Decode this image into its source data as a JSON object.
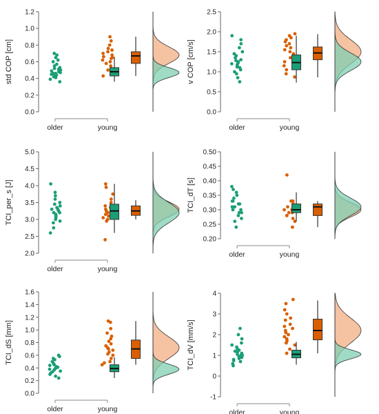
{
  "colors": {
    "older": "#1b9e77",
    "young": "#d95f02",
    "older_fill": "#7fcfb2",
    "young_fill": "#f2ad83"
  },
  "chart_data": [
    {
      "type": "raincloud",
      "ylabel": "std COP [cm]",
      "ylim": [
        0.0,
        1.2
      ],
      "yticks": [
        "0.0",
        "0.2",
        "0.4",
        "0.6",
        "0.8",
        "1.0",
        "1.2"
      ],
      "categories": [
        "older",
        "young"
      ],
      "older_points": [
        0.36,
        0.39,
        0.41,
        0.42,
        0.43,
        0.44,
        0.45,
        0.46,
        0.46,
        0.47,
        0.48,
        0.49,
        0.5,
        0.51,
        0.52,
        0.53,
        0.55,
        0.57,
        0.6,
        0.62,
        0.65,
        0.68,
        0.7
      ],
      "young_points": [
        0.43,
        0.47,
        0.5,
        0.55,
        0.58,
        0.6,
        0.62,
        0.64,
        0.65,
        0.66,
        0.68,
        0.7,
        0.72,
        0.74,
        0.76,
        0.8,
        0.85,
        0.9
      ],
      "older_box": {
        "whisker_low": 0.36,
        "q1": 0.43,
        "median": 0.48,
        "q3": 0.53,
        "whisker_high": 0.66
      },
      "young_box": {
        "whisker_low": 0.43,
        "q1": 0.58,
        "median": 0.67,
        "q3": 0.72,
        "whisker_high": 0.9
      },
      "older_density": {
        "mode": 0.47,
        "sd": 0.06
      },
      "young_density": {
        "mode": 0.68,
        "sd": 0.1
      }
    },
    {
      "type": "raincloud",
      "ylabel": "v COP [cm/s]",
      "ylim": [
        0.0,
        2.5
      ],
      "yticks": [
        "0.0",
        "0.5",
        "1.0",
        "1.5",
        "2.0",
        "2.5"
      ],
      "categories": [
        "older",
        "young"
      ],
      "older_points": [
        0.75,
        0.85,
        0.95,
        1.0,
        1.05,
        1.1,
        1.12,
        1.15,
        1.18,
        1.2,
        1.22,
        1.25,
        1.28,
        1.3,
        1.35,
        1.4,
        1.45,
        1.5,
        1.6,
        1.7,
        1.8,
        1.9
      ],
      "young_points": [
        0.87,
        0.95,
        1.05,
        1.15,
        1.25,
        1.35,
        1.45,
        1.5,
        1.55,
        1.6,
        1.65,
        1.7,
        1.75,
        1.8,
        1.85,
        1.9,
        1.95
      ],
      "older_box": {
        "whisker_low": 0.73,
        "q1": 1.05,
        "median": 1.23,
        "q3": 1.42,
        "whisker_high": 1.9
      },
      "young_box": {
        "whisker_low": 0.86,
        "q1": 1.3,
        "median": 1.47,
        "q3": 1.62,
        "whisker_high": 1.94
      },
      "older_density": {
        "mode": 1.25,
        "sd": 0.22
      },
      "young_density": {
        "mode": 1.5,
        "sd": 0.3
      }
    },
    {
      "type": "raincloud",
      "ylabel": "TCI_per_s [J]",
      "ylim": [
        2.0,
        5.0
      ],
      "yticks": [
        "2.0",
        "2.5",
        "3.0",
        "3.5",
        "4.0",
        "4.5",
        "5.0"
      ],
      "categories": [
        "older",
        "young"
      ],
      "older_points": [
        2.6,
        2.75,
        2.9,
        2.95,
        3.0,
        3.05,
        3.1,
        3.1,
        3.15,
        3.2,
        3.2,
        3.25,
        3.3,
        3.3,
        3.35,
        3.4,
        3.45,
        3.5,
        3.6,
        3.7,
        3.8,
        4.05
      ],
      "young_points": [
        2.4,
        2.95,
        3.0,
        3.05,
        3.1,
        3.15,
        3.2,
        3.25,
        3.3,
        3.35,
        3.4,
        3.5,
        3.6,
        3.75,
        3.95,
        4.05
      ],
      "older_box": {
        "whisker_low": 2.6,
        "q1": 3.0,
        "median": 3.25,
        "q3": 3.45,
        "whisker_high": 4.05
      },
      "young_box": {
        "whisker_low": 3.0,
        "q1": 3.12,
        "median": 3.25,
        "q3": 3.4,
        "whisker_high": 3.57
      },
      "older_density": {
        "mode": 3.2,
        "sd": 0.3
      },
      "young_density": {
        "mode": 3.3,
        "sd": 0.22
      }
    },
    {
      "type": "raincloud",
      "ylabel": "TCI_dT [s]",
      "ylim": [
        0.2,
        0.5
      ],
      "yticks": [
        "0.20",
        "0.25",
        "0.30",
        "0.35",
        "0.40",
        "0.45",
        "0.50"
      ],
      "categories": [
        "older",
        "young"
      ],
      "older_points": [
        0.24,
        0.26,
        0.27,
        0.28,
        0.29,
        0.29,
        0.3,
        0.3,
        0.31,
        0.31,
        0.32,
        0.32,
        0.33,
        0.33,
        0.34,
        0.35,
        0.36,
        0.37,
        0.38
      ],
      "young_points": [
        0.24,
        0.26,
        0.27,
        0.28,
        0.28,
        0.29,
        0.29,
        0.3,
        0.3,
        0.31,
        0.32,
        0.33,
        0.33,
        0.42
      ],
      "older_box": {
        "whisker_low": 0.26,
        "q1": 0.29,
        "median": 0.3,
        "q3": 0.32,
        "whisker_high": 0.36
      },
      "young_box": {
        "whisker_low": 0.24,
        "q1": 0.28,
        "median": 0.31,
        "q3": 0.32,
        "whisker_high": 0.33
      },
      "older_density": {
        "mode": 0.31,
        "sd": 0.03
      },
      "young_density": {
        "mode": 0.3,
        "sd": 0.025
      }
    },
    {
      "type": "raincloud",
      "ylabel": "TCI_dS [mm]",
      "ylim": [
        0.0,
        1.6
      ],
      "yticks": [
        "0.0",
        "0.2",
        "0.4",
        "0.6",
        "0.8",
        "1.0",
        "1.2",
        "1.4",
        "1.6"
      ],
      "categories": [
        "older",
        "young"
      ],
      "older_points": [
        0.24,
        0.27,
        0.3,
        0.32,
        0.34,
        0.35,
        0.37,
        0.38,
        0.39,
        0.4,
        0.41,
        0.42,
        0.44,
        0.45,
        0.47,
        0.5,
        0.53,
        0.55,
        0.58,
        0.6
      ],
      "young_points": [
        0.45,
        0.48,
        0.5,
        0.55,
        0.6,
        0.62,
        0.65,
        0.68,
        0.7,
        0.72,
        0.75,
        0.78,
        0.82,
        0.86,
        0.9,
        0.95,
        1.02,
        1.12,
        1.14
      ],
      "older_box": {
        "whisker_low": 0.24,
        "q1": 0.34,
        "median": 0.39,
        "q3": 0.45,
        "whisker_high": 0.57
      },
      "young_box": {
        "whisker_low": 0.45,
        "q1": 0.55,
        "median": 0.7,
        "q3": 0.84,
        "whisker_high": 1.14
      },
      "older_density": {
        "mode": 0.38,
        "sd": 0.08
      },
      "young_density": {
        "mode": 0.72,
        "sd": 0.17
      }
    },
    {
      "type": "raincloud",
      "ylabel": "TCI_dV [mm/s]",
      "ylim": [
        -1,
        4
      ],
      "yticks": [
        "-1",
        "0",
        "1",
        "2",
        "3",
        "4"
      ],
      "categories": [
        "older",
        "young"
      ],
      "older_points": [
        0.5,
        0.6,
        0.7,
        0.75,
        0.8,
        0.85,
        0.9,
        0.95,
        1.0,
        1.0,
        1.05,
        1.1,
        1.15,
        1.2,
        1.25,
        1.3,
        1.4,
        1.5,
        1.6,
        1.8,
        2.0,
        2.3
      ],
      "young_points": [
        1.1,
        1.3,
        1.5,
        1.6,
        1.7,
        1.8,
        1.9,
        2.0,
        2.1,
        2.2,
        2.3,
        2.4,
        2.5,
        2.7,
        2.8,
        3.0,
        3.2,
        3.5,
        3.7
      ],
      "older_box": {
        "whisker_low": 0.55,
        "q1": 0.88,
        "median": 1.05,
        "q3": 1.25,
        "whisker_high": 1.65
      },
      "young_box": {
        "whisker_low": 1.1,
        "q1": 1.75,
        "median": 2.2,
        "q3": 2.75,
        "whisker_high": 3.65
      },
      "older_density": {
        "mode": 1.05,
        "sd": 0.22
      },
      "young_density": {
        "mode": 2.2,
        "sd": 0.6
      }
    }
  ]
}
